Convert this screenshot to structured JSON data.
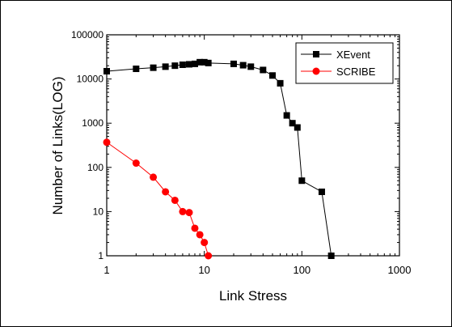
{
  "chart_data": {
    "type": "scatter",
    "title": "",
    "xlabel": "Link Stress",
    "ylabel": "Number of Links(LOG)",
    "x_scale": "log",
    "y_scale": "log",
    "xlim": [
      1,
      1000
    ],
    "ylim": [
      1,
      100000
    ],
    "x_ticks": [
      "1",
      "10",
      "100",
      "1000"
    ],
    "y_ticks": [
      "1",
      "10",
      "100",
      "1000",
      "10000",
      "100000"
    ],
    "grid": false,
    "legend_position": "top-right",
    "series": [
      {
        "name": "XEvent",
        "color": "#000000",
        "marker": "square",
        "x": [
          1,
          2,
          3,
          4,
          5,
          6,
          7,
          8,
          9,
          10,
          11,
          20,
          25,
          30,
          40,
          50,
          60,
          70,
          80,
          90,
          100,
          160,
          200
        ],
        "y": [
          15000,
          17000,
          18000,
          19000,
          20000,
          21000,
          21500,
          22000,
          24000,
          24000,
          23000,
          22000,
          20500,
          19000,
          16000,
          12000,
          8000,
          1500,
          1000,
          800,
          50,
          28,
          1
        ]
      },
      {
        "name": "SCRIBE",
        "color": "#ff0000",
        "marker": "circle",
        "x": [
          1,
          2,
          3,
          4,
          5,
          6,
          7,
          8,
          9,
          10,
          11
        ],
        "y": [
          370,
          125,
          60,
          28,
          18,
          10,
          9.5,
          4.2,
          3,
          2,
          1
        ]
      }
    ]
  }
}
